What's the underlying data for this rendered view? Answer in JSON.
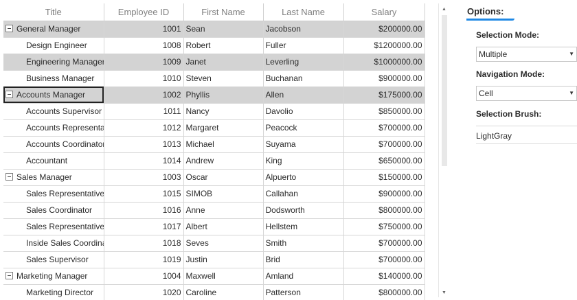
{
  "grid": {
    "columns": [
      "Title",
      "Employee ID",
      "First Name",
      "Last Name",
      "Salary"
    ],
    "rows": [
      {
        "title": "General Manager",
        "id": "1001",
        "first": "Sean",
        "last": "Jacobson",
        "salary": "$200000.00",
        "level": 0,
        "expander": true,
        "selected": true,
        "focus": false
      },
      {
        "title": "Design Engineer",
        "id": "1008",
        "first": "Robert",
        "last": "Fuller",
        "salary": "$1200000.00",
        "level": 1,
        "expander": false,
        "selected": false,
        "focus": false
      },
      {
        "title": "Engineering Manager",
        "id": "1009",
        "first": "Janet",
        "last": "Leverling",
        "salary": "$1000000.00",
        "level": 1,
        "expander": false,
        "selected": true,
        "focus": false
      },
      {
        "title": "Business Manager",
        "id": "1010",
        "first": "Steven",
        "last": "Buchanan",
        "salary": "$900000.00",
        "level": 1,
        "expander": false,
        "selected": false,
        "focus": false
      },
      {
        "title": "Accounts Manager",
        "id": "1002",
        "first": "Phyllis",
        "last": "Allen",
        "salary": "$175000.00",
        "level": 0,
        "expander": true,
        "selected": true,
        "focus": true
      },
      {
        "title": "Accounts Supervisor",
        "id": "1011",
        "first": "Nancy",
        "last": "Davolio",
        "salary": "$850000.00",
        "level": 1,
        "expander": false,
        "selected": false,
        "focus": false
      },
      {
        "title": "Accounts Representative",
        "id": "1012",
        "first": "Margaret",
        "last": "Peacock",
        "salary": "$700000.00",
        "level": 1,
        "expander": false,
        "selected": false,
        "focus": false
      },
      {
        "title": "Accounts Coordinator",
        "id": "1013",
        "first": "Michael",
        "last": "Suyama",
        "salary": "$700000.00",
        "level": 1,
        "expander": false,
        "selected": false,
        "focus": false
      },
      {
        "title": "Accountant",
        "id": "1014",
        "first": "Andrew",
        "last": "King",
        "salary": "$650000.00",
        "level": 1,
        "expander": false,
        "selected": false,
        "focus": false
      },
      {
        "title": "Sales Manager",
        "id": "1003",
        "first": "Oscar",
        "last": "Alpuerto",
        "salary": "$150000.00",
        "level": 0,
        "expander": true,
        "selected": false,
        "focus": false
      },
      {
        "title": "Sales Representative",
        "id": "1015",
        "first": "SIMOB",
        "last": "Callahan",
        "salary": "$900000.00",
        "level": 1,
        "expander": false,
        "selected": false,
        "focus": false
      },
      {
        "title": "Sales Coordinator",
        "id": "1016",
        "first": "Anne",
        "last": "Dodsworth",
        "salary": "$800000.00",
        "level": 1,
        "expander": false,
        "selected": false,
        "focus": false
      },
      {
        "title": "Sales Representative",
        "id": "1017",
        "first": "Albert",
        "last": "Hellstem",
        "salary": "$750000.00",
        "level": 1,
        "expander": false,
        "selected": false,
        "focus": false
      },
      {
        "title": "Inside Sales Coordinator",
        "id": "1018",
        "first": "Seves",
        "last": "Smith",
        "salary": "$700000.00",
        "level": 1,
        "expander": false,
        "selected": false,
        "focus": false
      },
      {
        "title": "Sales Supervisor",
        "id": "1019",
        "first": "Justin",
        "last": "Brid",
        "salary": "$700000.00",
        "level": 1,
        "expander": false,
        "selected": false,
        "focus": false
      },
      {
        "title": "Marketing Manager",
        "id": "1004",
        "first": "Maxwell",
        "last": "Amland",
        "salary": "$140000.00",
        "level": 0,
        "expander": true,
        "selected": false,
        "focus": false
      },
      {
        "title": "Marketing Director",
        "id": "1020",
        "first": "Caroline",
        "last": "Patterson",
        "salary": "$800000.00",
        "level": 1,
        "expander": false,
        "selected": false,
        "focus": false
      }
    ],
    "selection_color": "#d3d3d3"
  },
  "options": {
    "title": "Options:",
    "accent": "#1e88e5",
    "selection_mode_label": "Selection Mode:",
    "selection_mode_value": "Multiple",
    "navigation_mode_label": "Navigation Mode:",
    "navigation_mode_value": "Cell",
    "selection_brush_label": "Selection Brush:",
    "selection_brush_value": "LightGray"
  }
}
